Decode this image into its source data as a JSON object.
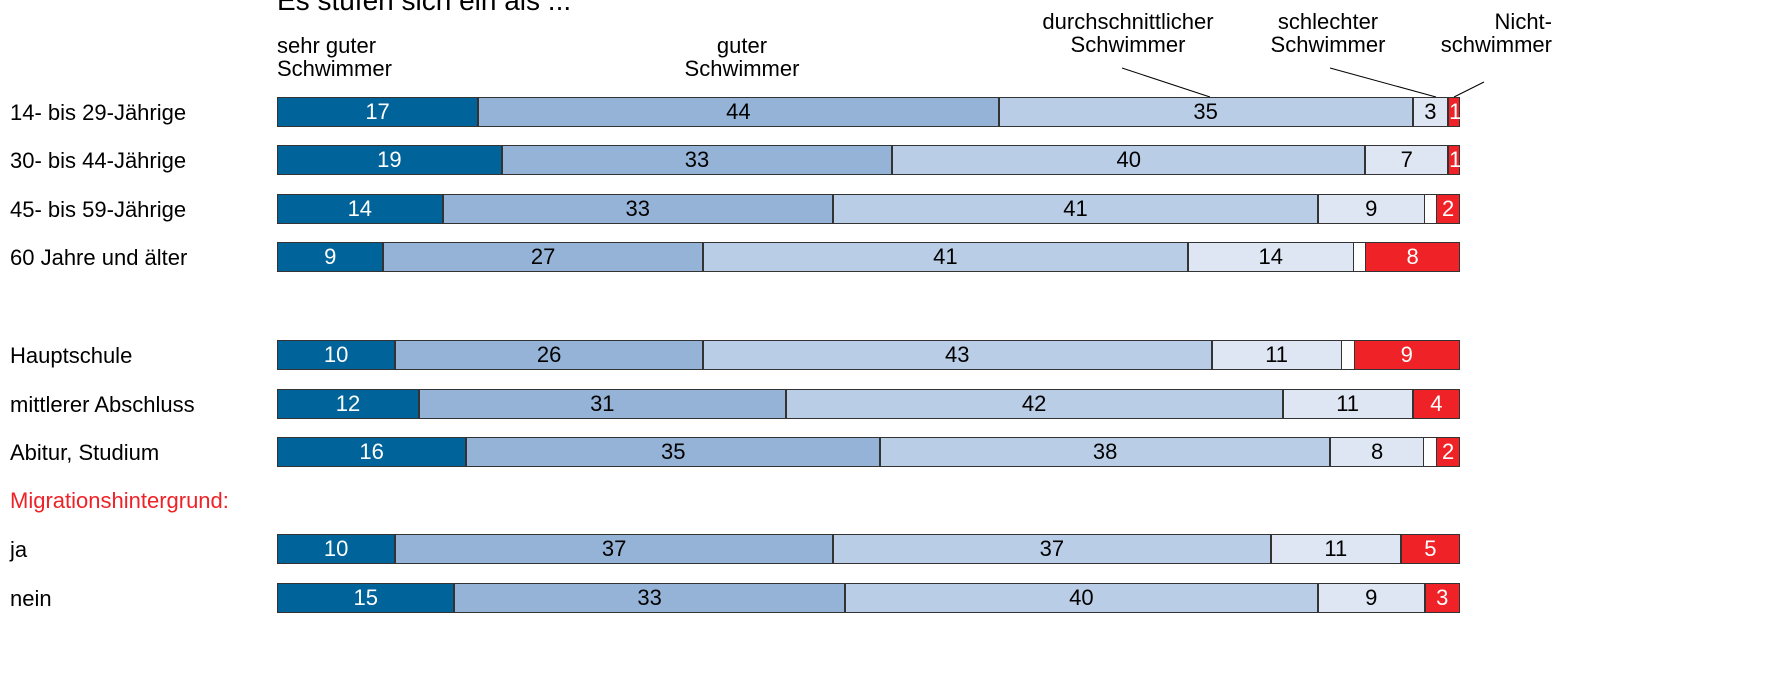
{
  "chart_data": {
    "type": "stacked_bar_horizontal",
    "title": "Es stufen sich ein als ...",
    "annotation": "Migrationshintergrund:",
    "categories": [
      "14- bis 29-Jährige",
      "30- bis 44-Jährige",
      "45- bis 59-Jährige",
      "60 Jahre und älter",
      "Hauptschule",
      "mittlerer Abschluss",
      "Abitur, Studium",
      "ja",
      "nein"
    ],
    "xlim": [
      0,
      100
    ],
    "series": [
      {
        "name": "sehr guter\nSchwimmer",
        "color": "#00639a",
        "values": [
          17,
          19,
          14,
          9,
          10,
          12,
          16,
          10,
          15
        ]
      },
      {
        "name": "guter\nSchwimmer",
        "color": "#94b3d6",
        "values": [
          44,
          33,
          33,
          27,
          26,
          31,
          35,
          37,
          33
        ]
      },
      {
        "name": "durchschnittlicher\nSchwimmer",
        "color": "#b9cde6",
        "values": [
          35,
          40,
          41,
          41,
          43,
          42,
          38,
          37,
          40
        ]
      },
      {
        "name": "schlechter\nSchwimmer",
        "color": "#dde6f2",
        "values": [
          3,
          7,
          9,
          14,
          11,
          11,
          8,
          11,
          9
        ]
      },
      {
        "name": "Nicht-\nschwimmer",
        "color": "#ee2227",
        "values": [
          1,
          1,
          2,
          8,
          9,
          4,
          2,
          5,
          3
        ]
      }
    ]
  }
}
